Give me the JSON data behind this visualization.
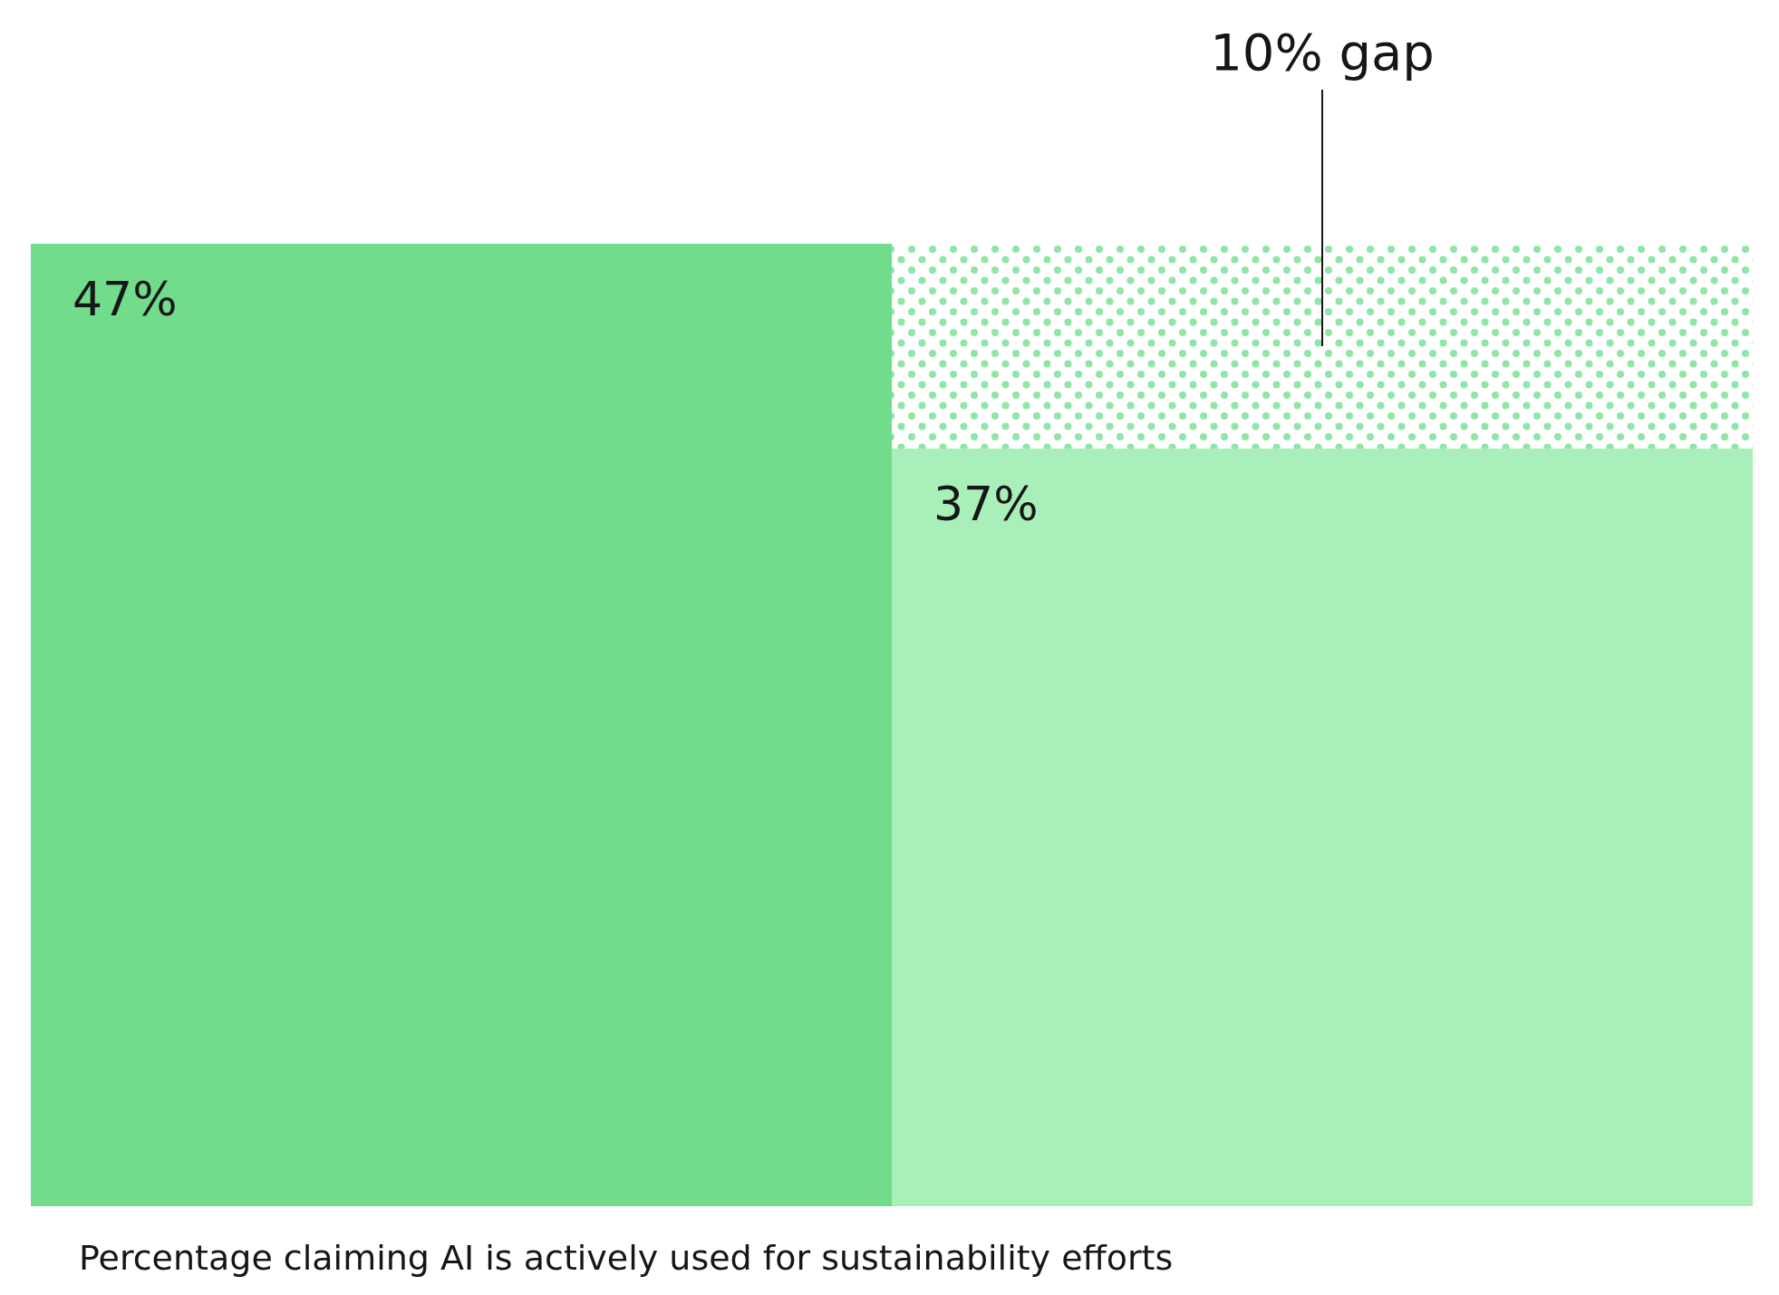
{
  "chart_data": {
    "type": "bar",
    "stacked": true,
    "categories": [
      null,
      null
    ],
    "tick_labels": false,
    "series": [
      {
        "colors": [
          "#70dc8c",
          "#a8efb9"
        ],
        "values": [
          47,
          37
        ],
        "value_labels": [
          "47%",
          "37%"
        ]
      },
      {
        "color": "#8fe6a6",
        "values": [
          null,
          10
        ],
        "value_labels": [
          null,
          "10% gap"
        ]
      }
    ],
    "annotations": [
      "Percentage claiming AI is actively used for sustainability efforts"
    ]
  }
}
